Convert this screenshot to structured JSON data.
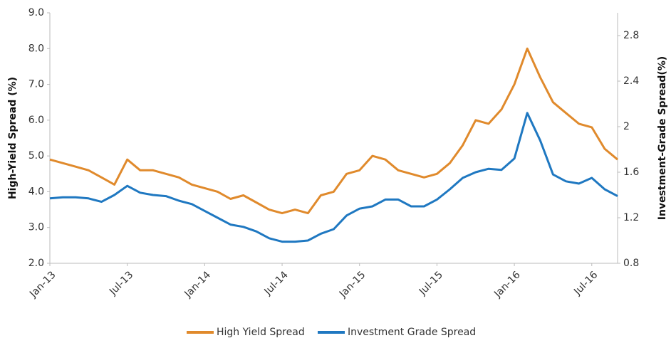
{
  "chart_data": {
    "type": "line",
    "y_label": "High-Yield Spread (%)",
    "y2_label": "Investment-Grade Spread(%)",
    "x": [
      "2013-01",
      "2013-02",
      "2013-03",
      "2013-04",
      "2013-05",
      "2013-06",
      "2013-07",
      "2013-08",
      "2013-09",
      "2013-10",
      "2013-11",
      "2013-12",
      "2014-01",
      "2014-02",
      "2014-03",
      "2014-04",
      "2014-05",
      "2014-06",
      "2014-07",
      "2014-08",
      "2014-09",
      "2014-10",
      "2014-11",
      "2014-12",
      "2015-01",
      "2015-02",
      "2015-03",
      "2015-04",
      "2015-05",
      "2015-06",
      "2015-07",
      "2015-08",
      "2015-09",
      "2015-10",
      "2015-11",
      "2015-12",
      "2016-01",
      "2016-02",
      "2016-03",
      "2016-04",
      "2016-05",
      "2016-06",
      "2016-07",
      "2016-08",
      "2016-09"
    ],
    "xlim": [
      "2013-01",
      "2016-09"
    ],
    "xticks": [
      {
        "value": "2013-01",
        "label": "Jan-13"
      },
      {
        "value": "2013-07",
        "label": "Jul-13"
      },
      {
        "value": "2014-01",
        "label": "Jan-14"
      },
      {
        "value": "2014-07",
        "label": "Jul-14"
      },
      {
        "value": "2015-01",
        "label": "Jan-15"
      },
      {
        "value": "2015-07",
        "label": "Jul-15"
      },
      {
        "value": "2016-01",
        "label": "Jan-16"
      },
      {
        "value": "2016-07",
        "label": "Jul-16"
      }
    ],
    "ylim": [
      2,
      9
    ],
    "yticks": [
      {
        "value": 2,
        "label": "2.0"
      },
      {
        "value": 3,
        "label": "3.0"
      },
      {
        "value": 4,
        "label": "4.0"
      },
      {
        "value": 5,
        "label": "5.0"
      },
      {
        "value": 6,
        "label": "6.0"
      },
      {
        "value": 7,
        "label": "7.0"
      },
      {
        "value": 8,
        "label": "8.0"
      },
      {
        "value": 9,
        "label": "9.0"
      }
    ],
    "y2lim": [
      0.8,
      3.0
    ],
    "y2ticks": [
      0.8,
      1.2,
      1.6,
      2.0,
      2.4,
      2.8
    ],
    "grid": false,
    "legend": "bottom",
    "series": [
      {
        "name": "High Yield Spread",
        "color": "#e08a2c",
        "values": [
          4.9,
          4.8,
          4.7,
          4.6,
          4.4,
          4.2,
          4.9,
          4.6,
          4.6,
          4.5,
          4.4,
          4.2,
          4.1,
          4.0,
          3.8,
          3.9,
          3.7,
          3.5,
          3.4,
          3.5,
          3.4,
          3.9,
          4.0,
          4.5,
          4.6,
          5.0,
          4.9,
          4.6,
          4.5,
          4.4,
          4.5,
          4.8,
          5.3,
          6.0,
          5.9,
          6.3,
          7.0,
          8.0,
          7.2,
          6.5,
          6.2,
          5.9,
          5.8,
          5.2,
          4.9
        ]
      },
      {
        "name": "Investment Grade Spread",
        "color": "#1f78c1",
        "axis": "y2",
        "values": [
          1.37,
          1.38,
          1.38,
          1.37,
          1.34,
          1.4,
          1.48,
          1.42,
          1.4,
          1.39,
          1.35,
          1.32,
          1.26,
          1.2,
          1.14,
          1.12,
          1.08,
          1.02,
          0.99,
          0.99,
          1.0,
          1.06,
          1.1,
          1.22,
          1.28,
          1.3,
          1.36,
          1.36,
          1.3,
          1.3,
          1.36,
          1.45,
          1.55,
          1.6,
          1.63,
          1.62,
          1.72,
          2.12,
          1.88,
          1.58,
          1.52,
          1.5,
          1.55,
          1.45,
          1.39
        ]
      }
    ]
  }
}
